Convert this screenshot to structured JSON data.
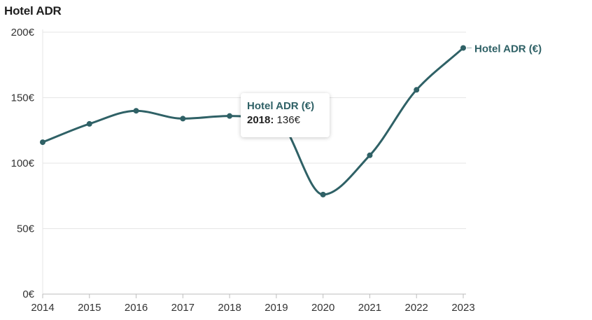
{
  "colors": {
    "series": "#2f6166",
    "grid": "#e6e6e6",
    "axis": "#bdbdbd",
    "text": "#333333"
  },
  "chart_data": {
    "type": "line",
    "title": "Hotel ADR",
    "x": [
      "2014",
      "2015",
      "2016",
      "2017",
      "2018",
      "2019",
      "2020",
      "2021",
      "2022",
      "2023"
    ],
    "y_ticks": [
      "0€",
      "50€",
      "100€",
      "150€",
      "200€"
    ],
    "y_tick_values": [
      0,
      50,
      100,
      150,
      200
    ],
    "ylim": [
      0,
      200
    ],
    "grid": true,
    "legend": "end-of-line label",
    "series": [
      {
        "name": "Hotel ADR (€)",
        "values": [
          116,
          130,
          140,
          134,
          136,
          133,
          76,
          106,
          156,
          188
        ]
      }
    ],
    "tooltip": {
      "series": "Hotel ADR (€)",
      "x_label": "2018:",
      "value_label": "136€"
    }
  }
}
